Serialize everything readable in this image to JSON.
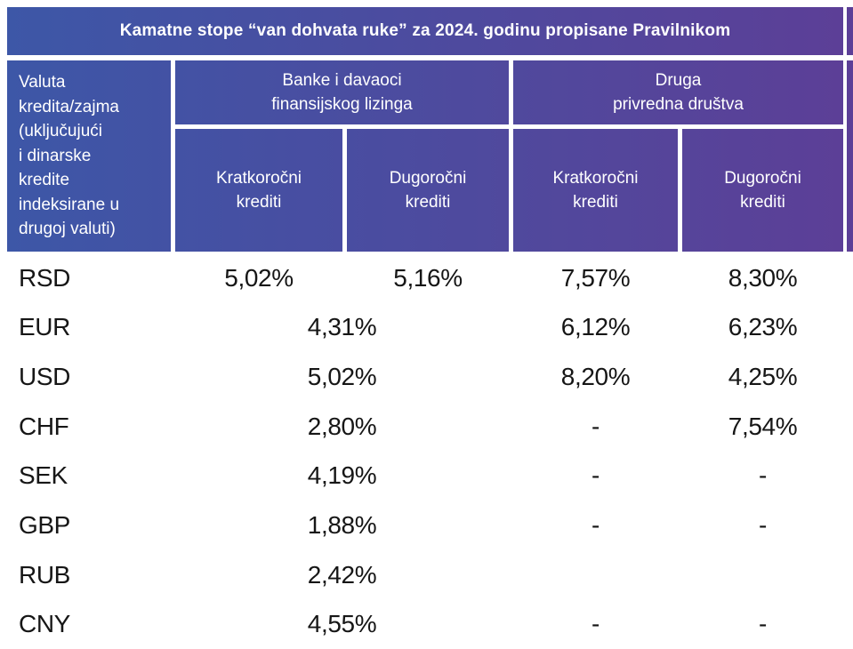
{
  "title": "Kamatne stope “van dohvata ruke” za 2024. godinu propisane Pravilnikom",
  "colors": {
    "gradient_start_blue": "#3D57A7",
    "gradient_end_purple": "#5C3F97",
    "header_text": "#FFFFFF",
    "data_text": "#161616",
    "background": "#FFFFFF"
  },
  "header": {
    "currency_label": "Valuta\nkredita/zajma\n(uključujući\ni dinarske\nkredite\nindeksirane u\ndrugoj valuti)",
    "group_banks": "Banke i davaoci\nfinansijskog lizinga",
    "group_other": "Druga\nprivredna društva",
    "banks_short_label": "Kratkoročni\nkrediti",
    "banks_long_label": "Dugoročni\nkrediti",
    "other_short_label": "Kratkoročni\nkrediti",
    "other_long_label": "Dugoročni\nkrediti"
  },
  "chart_data": {
    "type": "table",
    "title": "Kamatne stope “van dohvata ruke” za 2024. godinu propisane Pravilnikom",
    "columns": [
      "Valuta kredita/zajma (uključujući i dinarske kredite indeksirane u drugoj valuti)",
      "Banke i davaoci finansijskog lizinga — Kratkoročni krediti",
      "Banke i davaoci finansijskog lizinga — Dugoročni krediti",
      "Druga privredna društva — Kratkoročni krediti",
      "Druga privredna društva — Dugoročni krediti"
    ],
    "rows": [
      {
        "currency": "RSD",
        "banks_short": "5,02%",
        "banks_long": "5,16%",
        "other_short": "7,57%",
        "other_long": "8,30%"
      },
      {
        "currency": "EUR",
        "banks_merged": "4,31%",
        "other_short": "6,12%",
        "other_long": "6,23%"
      },
      {
        "currency": "USD",
        "banks_merged": "5,02%",
        "other_short": "8,20%",
        "other_long": "4,25%"
      },
      {
        "currency": "CHF",
        "banks_merged": "2,80%",
        "other_short": "-",
        "other_long": "7,54%"
      },
      {
        "currency": "SEK",
        "banks_merged": "4,19%",
        "other_short": "-",
        "other_long": "-"
      },
      {
        "currency": "GBP",
        "banks_merged": "1,88%",
        "other_short": "-",
        "other_long": "-"
      },
      {
        "currency": "RUB",
        "banks_merged": "2,42%",
        "other_short": "",
        "other_long": ""
      },
      {
        "currency": "CNY",
        "banks_merged": "4,55%",
        "other_short": "-",
        "other_long": "-"
      }
    ]
  }
}
